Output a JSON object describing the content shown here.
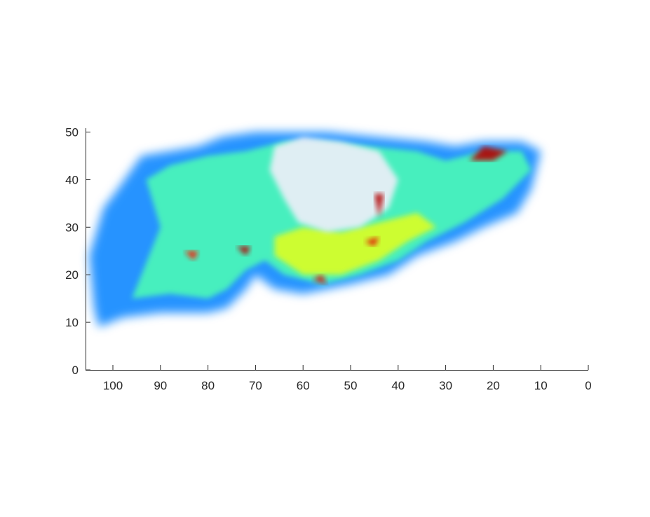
{
  "chart_data": {
    "type": "heatmap",
    "title": "",
    "xlabel": "",
    "ylabel": "",
    "x_direction": "reversed",
    "xlim": [
      0,
      106
    ],
    "ylim": [
      0,
      51
    ],
    "x_ticks": [
      100,
      90,
      80,
      70,
      60,
      50,
      40,
      30,
      20,
      10,
      0
    ],
    "y_ticks": [
      0,
      10,
      20,
      30,
      40,
      50
    ],
    "grid": false,
    "colormap": "jet",
    "description_note": "",
    "regions": [
      {
        "name": "body",
        "level": 0.25,
        "outline": [
          [
            104,
            13
          ],
          [
            103,
            9
          ],
          [
            98,
            11
          ],
          [
            90,
            12
          ],
          [
            80,
            12
          ],
          [
            76,
            13
          ],
          [
            72,
            17
          ],
          [
            70,
            20
          ],
          [
            66,
            17
          ],
          [
            60,
            16
          ],
          [
            50,
            18
          ],
          [
            42,
            20
          ],
          [
            36,
            24
          ],
          [
            28,
            27
          ],
          [
            22,
            30
          ],
          [
            15,
            33
          ],
          [
            12,
            38
          ],
          [
            10,
            46
          ],
          [
            14,
            48
          ],
          [
            22,
            48
          ],
          [
            28,
            47
          ],
          [
            34,
            48
          ],
          [
            45,
            49
          ],
          [
            55,
            50
          ],
          [
            63,
            50
          ],
          [
            70,
            50
          ],
          [
            77,
            49
          ],
          [
            82,
            47
          ],
          [
            88,
            46
          ],
          [
            94,
            45
          ],
          [
            99,
            38
          ],
          [
            102,
            34
          ],
          [
            105,
            24
          ]
        ]
      },
      {
        "name": "mid-layer",
        "level": 0.45,
        "outline": [
          [
            96,
            15
          ],
          [
            88,
            16
          ],
          [
            80,
            15
          ],
          [
            76,
            17
          ],
          [
            72,
            21
          ],
          [
            68,
            23
          ],
          [
            64,
            20
          ],
          [
            56,
            18
          ],
          [
            48,
            20
          ],
          [
            40,
            23
          ],
          [
            34,
            27
          ],
          [
            26,
            31
          ],
          [
            18,
            36
          ],
          [
            12,
            42
          ],
          [
            14,
            46
          ],
          [
            22,
            46
          ],
          [
            30,
            44
          ],
          [
            36,
            46
          ],
          [
            46,
            47
          ],
          [
            56,
            48
          ],
          [
            64,
            48
          ],
          [
            72,
            46
          ],
          [
            80,
            45
          ],
          [
            88,
            43
          ],
          [
            93,
            40
          ],
          [
            90,
            30
          ],
          [
            94,
            20
          ]
        ]
      },
      {
        "name": "bright-band",
        "level": 0.6,
        "outline": [
          [
            66,
            24
          ],
          [
            60,
            20
          ],
          [
            52,
            20
          ],
          [
            44,
            23
          ],
          [
            38,
            27
          ],
          [
            32,
            30
          ],
          [
            36,
            33
          ],
          [
            44,
            31
          ],
          [
            52,
            29
          ],
          [
            60,
            30
          ],
          [
            66,
            28
          ]
        ]
      },
      {
        "name": "white-cavity",
        "level": -1,
        "outline": [
          [
            67,
            42
          ],
          [
            64,
            36
          ],
          [
            61,
            31
          ],
          [
            55,
            29
          ],
          [
            48,
            30
          ],
          [
            42,
            34
          ],
          [
            40,
            40
          ],
          [
            44,
            46
          ],
          [
            52,
            48
          ],
          [
            60,
            49
          ],
          [
            66,
            47
          ]
        ]
      },
      {
        "name": "hotspot-a",
        "level": 0.95,
        "outline": [
          [
            25,
            44
          ],
          [
            22,
            47
          ],
          [
            17,
            46
          ],
          [
            20,
            44
          ]
        ]
      },
      {
        "name": "hotspot-b",
        "level": 0.95,
        "outline": [
          [
            45,
            37
          ],
          [
            44,
            32
          ],
          [
            43,
            37
          ]
        ]
      },
      {
        "name": "hotspot-c",
        "level": 0.95,
        "outline": [
          [
            74,
            26
          ],
          [
            72,
            24
          ],
          [
            71,
            26
          ]
        ]
      },
      {
        "name": "hotspot-d",
        "level": 0.9,
        "outline": [
          [
            58,
            19
          ],
          [
            55,
            18
          ],
          [
            56,
            20
          ]
        ]
      },
      {
        "name": "hotspot-e",
        "level": 0.9,
        "outline": [
          [
            47,
            27
          ],
          [
            45,
            26
          ],
          [
            44,
            28
          ]
        ]
      },
      {
        "name": "hotspot-f",
        "level": 0.85,
        "outline": [
          [
            85,
            25
          ],
          [
            83,
            23
          ],
          [
            82,
            25
          ]
        ]
      }
    ]
  }
}
